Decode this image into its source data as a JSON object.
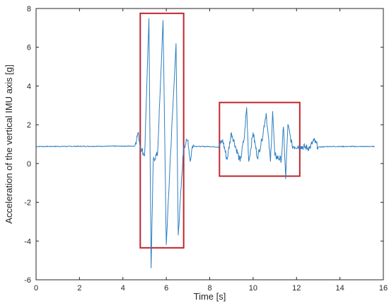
{
  "chart_data": {
    "type": "line",
    "title": "",
    "xlabel": "Time [s]",
    "ylabel": "Acceleration of the vertical IMU axis [g]",
    "xlim": [
      0,
      16
    ],
    "ylim": [
      -6,
      8
    ],
    "xticks": [
      0,
      2,
      4,
      6,
      8,
      10,
      12,
      14,
      16
    ],
    "yticks": [
      -6,
      -4,
      -2,
      0,
      2,
      4,
      6,
      8
    ],
    "grid": false,
    "line_color": "#2f7fc1",
    "highlight_color": "#c0272d",
    "baseline": 0.88,
    "signal_end": 15.6,
    "series": [
      {
        "x": [
          0.0,
          4.55,
          4.7,
          4.8,
          5.0,
          5.2,
          5.3,
          5.4,
          5.6,
          5.85,
          6.0,
          6.2,
          6.45,
          6.55,
          6.8,
          7.0,
          7.1,
          7.2,
          7.6,
          8.0,
          8.4,
          8.6,
          8.8,
          9.0,
          9.4,
          9.6,
          9.7,
          9.8,
          10.0,
          10.2,
          10.4,
          10.6,
          10.8,
          10.9,
          11.0,
          11.3,
          11.4,
          11.5,
          11.6,
          11.8,
          12.2,
          12.6,
          12.8,
          13.0,
          13.5,
          14.0,
          15.6
        ],
        "y": [
          0.88,
          0.9,
          1.6,
          0.9,
          0.4,
          7.5,
          -5.4,
          0.2,
          0.5,
          7.4,
          -4.2,
          0.6,
          6.2,
          -3.7,
          0.9,
          1.2,
          0.1,
          0.9,
          0.88,
          0.88,
          0.85,
          1.2,
          0.2,
          1.6,
          0.1,
          1.4,
          2.9,
          0.1,
          1.6,
          0.3,
          1.2,
          2.6,
          0.1,
          2.7,
          0.4,
          0.2,
          1.9,
          -0.8,
          2.0,
          0.9,
          0.88,
          0.8,
          1.2,
          0.85,
          0.88,
          0.88,
          0.88
        ]
      }
    ],
    "highlights": [
      {
        "x": [
          4.8,
          6.8
        ],
        "y": [
          -4.35,
          7.75
        ]
      },
      {
        "x": [
          8.45,
          12.15
        ],
        "y": [
          -0.65,
          3.15
        ]
      }
    ]
  }
}
